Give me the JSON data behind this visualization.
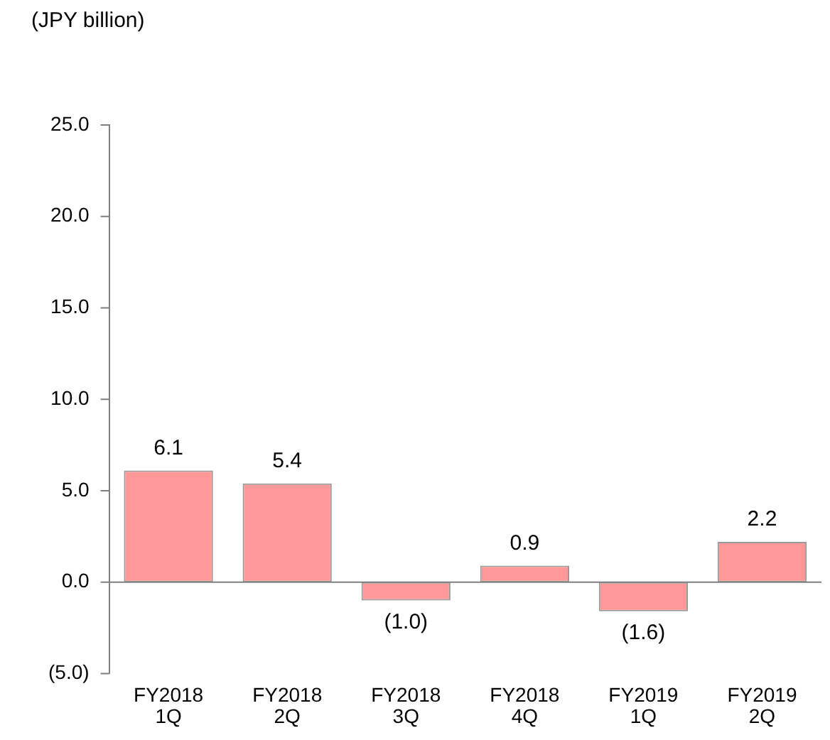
{
  "chart_data": {
    "type": "bar",
    "ylabel": "(JPY billion)",
    "categories": [
      "FY2018\n1Q",
      "FY2018\n2Q",
      "FY2018\n3Q",
      "FY2018\n4Q",
      "FY2019\n1Q",
      "FY2019\n2Q"
    ],
    "values": [
      6.1,
      5.4,
      -1.0,
      0.9,
      -1.6,
      2.2
    ],
    "value_labels": [
      "6.1",
      "5.4",
      "(1.0)",
      "0.9",
      "(1.6)",
      "2.2"
    ],
    "color": "#ff9999",
    "ylim": [
      -5,
      25
    ],
    "yticks": [
      {
        "value": -5,
        "label": "(5.0)"
      },
      {
        "value": 0,
        "label": "0.0"
      },
      {
        "value": 5,
        "label": "5.0"
      },
      {
        "value": 10,
        "label": "10.0"
      },
      {
        "value": 15,
        "label": "15.0"
      },
      {
        "value": 20,
        "label": "20.0"
      },
      {
        "value": 25,
        "label": "25.0"
      }
    ],
    "legend": false
  }
}
